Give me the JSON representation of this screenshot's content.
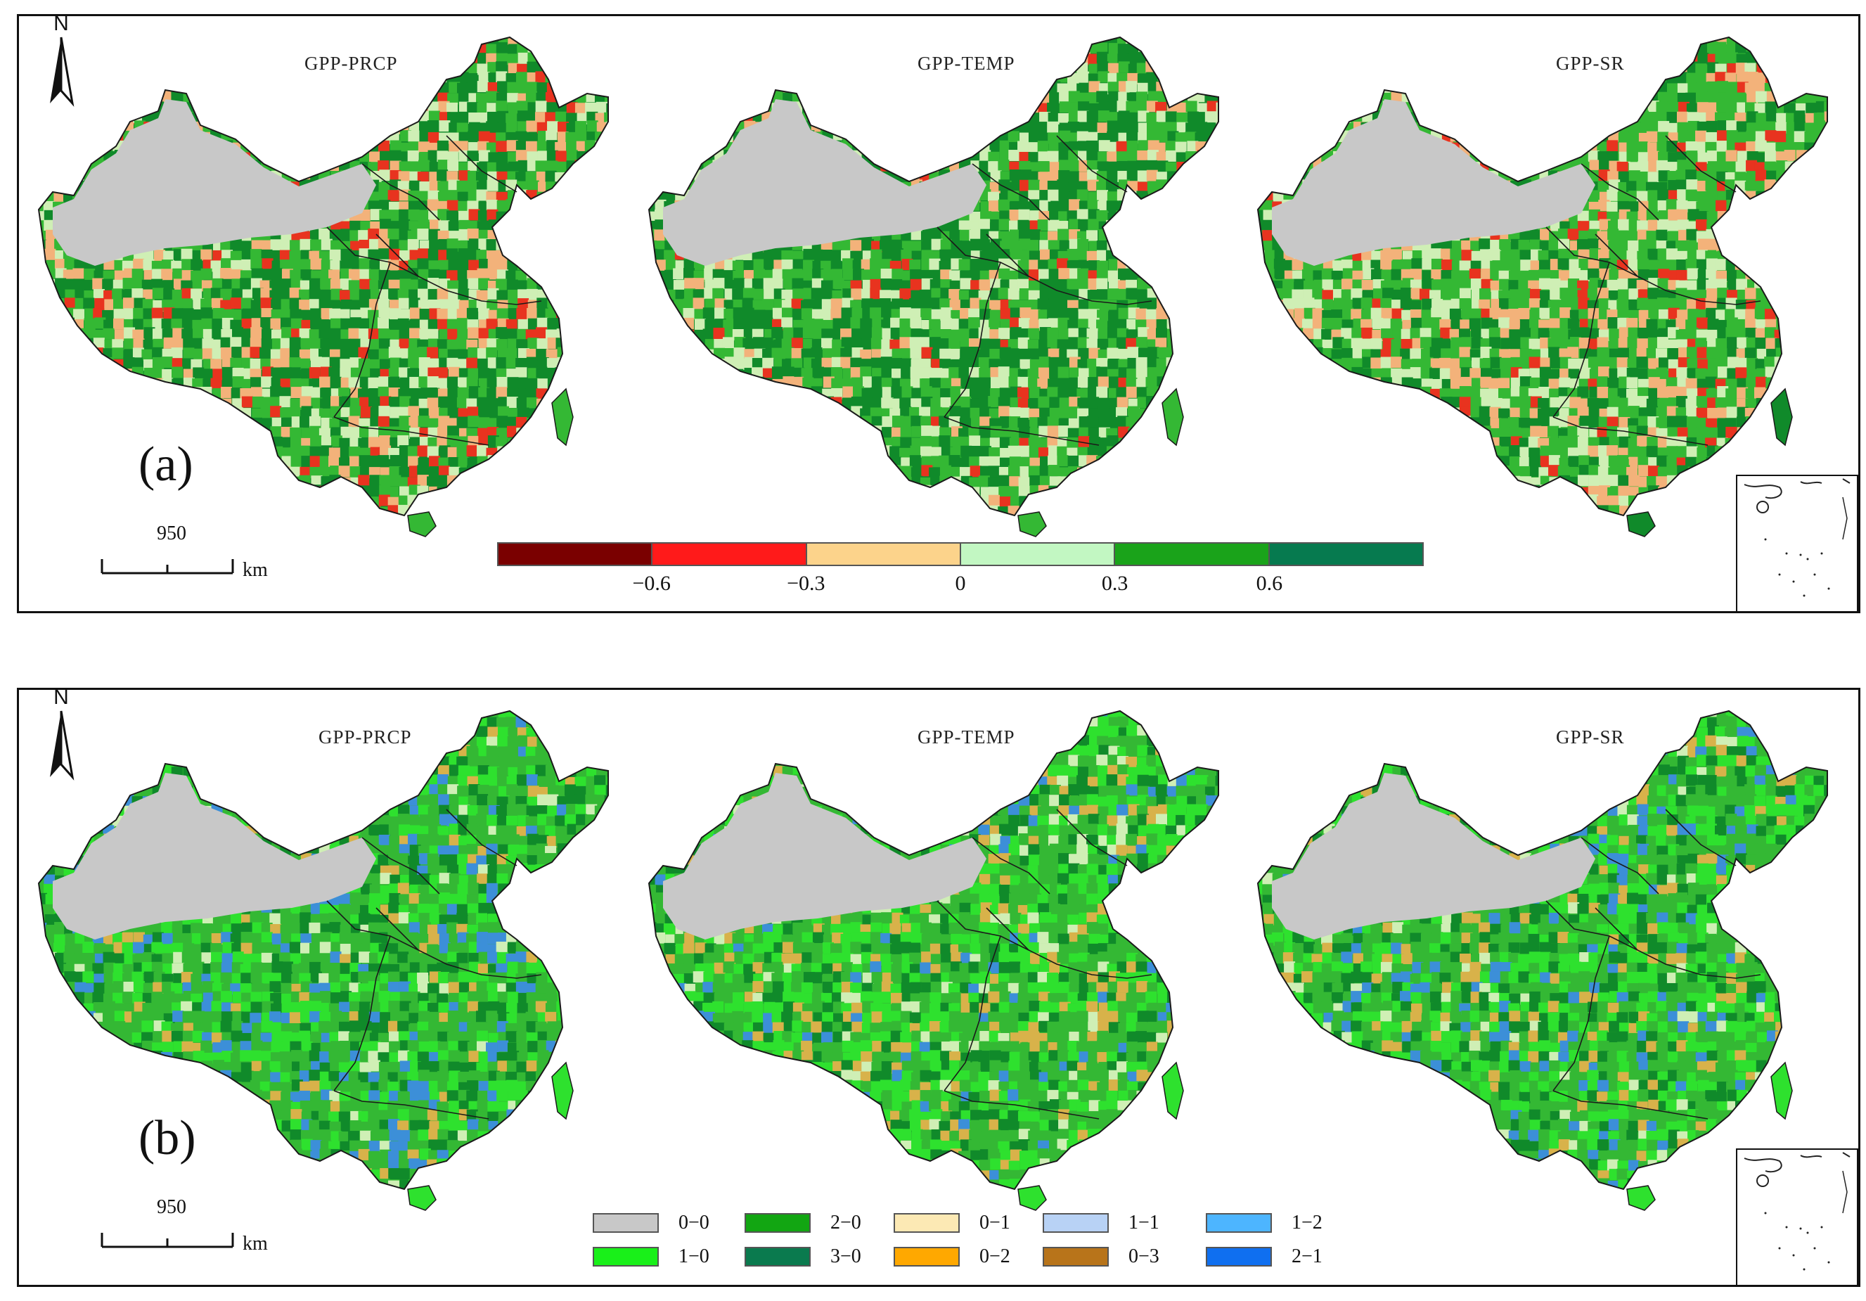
{
  "panel_a": {
    "label": "(a)",
    "map_titles": [
      "GPP-PRCP",
      "GPP-TEMP",
      "GPP-SR"
    ],
    "north": "N",
    "scale_value": "950",
    "scale_unit": "km",
    "colorbar": {
      "colors": [
        "#7a0000",
        "#ff1a1a",
        "#fcd38b",
        "#c2f7c2",
        "#1aa31a",
        "#067a4f"
      ],
      "ticks": [
        "−0.6",
        "−0.3",
        "0",
        "0.3",
        "0.6"
      ]
    }
  },
  "panel_b": {
    "label": "(b)",
    "map_titles": [
      "GPP-PRCP",
      "GPP-TEMP",
      "GPP-SR"
    ],
    "north": "N",
    "scale_value": "950",
    "scale_unit": "km",
    "legend": [
      {
        "label": "0−0",
        "color": "#c8c8c8"
      },
      {
        "label": "1−0",
        "color": "#19f019"
      },
      {
        "label": "2−0",
        "color": "#12a612"
      },
      {
        "label": "3−0",
        "color": "#0a7a4e"
      },
      {
        "label": "0−1",
        "color": "#fce9b4"
      },
      {
        "label": "0−2",
        "color": "#ffa800"
      },
      {
        "label": "1−1",
        "color": "#b8d2f5"
      },
      {
        "label": "0−3",
        "color": "#b8741a"
      },
      {
        "label": "1−2",
        "color": "#4db5ff"
      },
      {
        "label": "2−1",
        "color": "#0f6ff0"
      }
    ]
  },
  "map_colors": {
    "desert": "#c8c8c8",
    "green_dark": "#108a2a",
    "green_mid": "#34b834",
    "green_light": "#cfefb5",
    "red": "#e8331f",
    "orange": "#f3b27a",
    "bright_green": "#2ee12e",
    "blue": "#3c8fd8",
    "tan": "#d8b24a",
    "boundary": "#1a1a1a"
  }
}
